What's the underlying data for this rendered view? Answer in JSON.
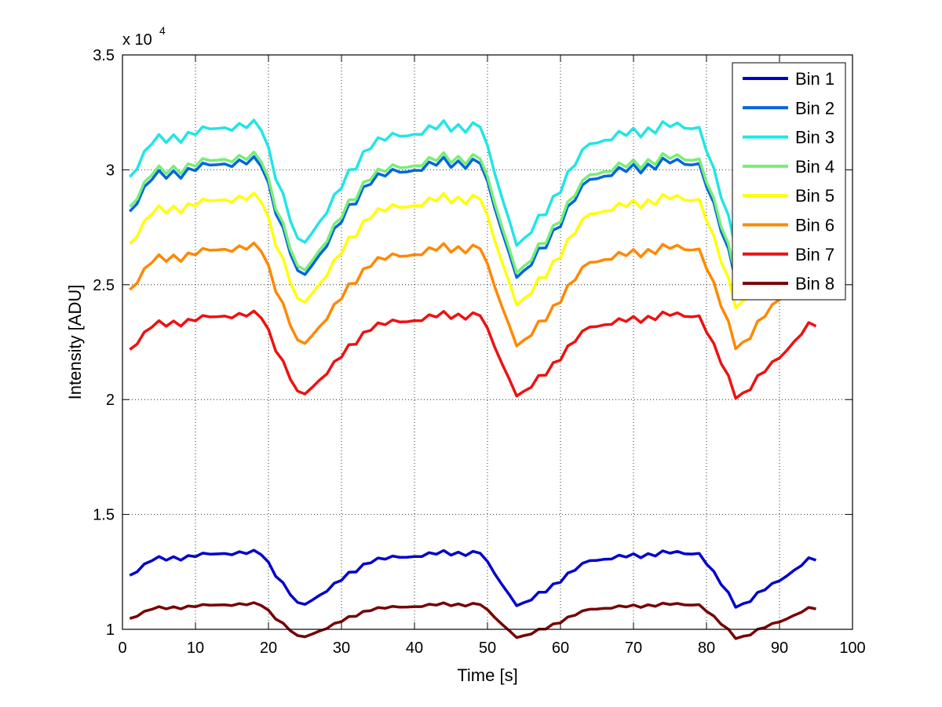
{
  "chart_data": {
    "type": "line",
    "title": "",
    "xlabel": "Time [s]",
    "ylabel": "Intensity [ADU]",
    "xlim": [
      0,
      100
    ],
    "ylim": [
      10000,
      35000
    ],
    "y_exponent_label": "x 10",
    "y_exponent_power": "4",
    "grid": true,
    "legend_position": "top-right",
    "x_ticks": [
      {
        "value": 0,
        "label": "0"
      },
      {
        "value": 10,
        "label": "10"
      },
      {
        "value": 20,
        "label": "20"
      },
      {
        "value": 30,
        "label": "30"
      },
      {
        "value": 40,
        "label": "40"
      },
      {
        "value": 50,
        "label": "50"
      },
      {
        "value": 60,
        "label": "60"
      },
      {
        "value": 70,
        "label": "70"
      },
      {
        "value": 80,
        "label": "80"
      },
      {
        "value": 90,
        "label": "90"
      },
      {
        "value": 100,
        "label": "100"
      }
    ],
    "y_ticks": [
      {
        "value": 10000,
        "label": "1"
      },
      {
        "value": 15000,
        "label": "1.5"
      },
      {
        "value": 20000,
        "label": "2"
      },
      {
        "value": 25000,
        "label": "2.5"
      },
      {
        "value": 30000,
        "label": "3"
      },
      {
        "value": 35000,
        "label": "3.5"
      }
    ],
    "x_range": [
      1,
      95
    ],
    "series": [
      {
        "name": "Bin 1",
        "color": "#0000cc",
        "base": 12950,
        "amp": 620
      },
      {
        "name": "Bin 2",
        "color": "#0066dd",
        "base": 29500,
        "amp": 1350
      },
      {
        "name": "Bin 3",
        "color": "#22e5e5",
        "base": 31050,
        "amp": 1400
      },
      {
        "name": "Bin 4",
        "color": "#77ee77",
        "base": 29700,
        "amp": 1350
      },
      {
        "name": "Bin 5",
        "color": "#ffff00",
        "base": 28000,
        "amp": 1250
      },
      {
        "name": "Bin 6",
        "color": "#ff8800",
        "base": 25900,
        "amp": 1150
      },
      {
        "name": "Bin 7",
        "color": "#ee1111",
        "base": 23100,
        "amp": 950
      },
      {
        "name": "Bin 8",
        "color": "#770000",
        "base": 10850,
        "amp": 390
      }
    ]
  }
}
